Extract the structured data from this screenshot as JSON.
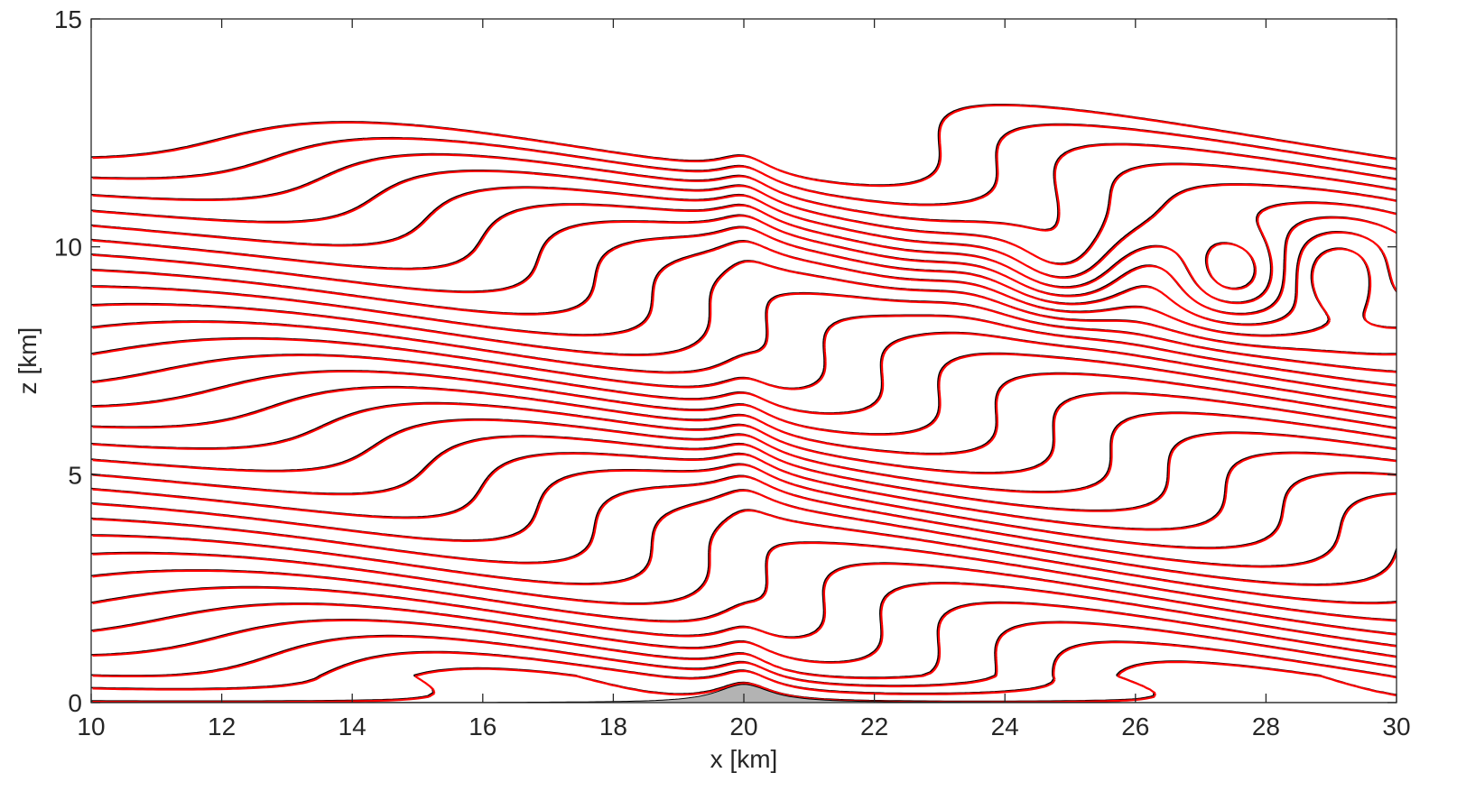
{
  "chart_data": {
    "type": "contour",
    "xlabel": "x [km]",
    "ylabel": "z [km]",
    "xlim": [
      10,
      30
    ],
    "ylim": [
      0,
      15
    ],
    "xticks": [
      "10",
      "12",
      "14",
      "16",
      "18",
      "20",
      "22",
      "24",
      "26",
      "28",
      "30"
    ],
    "yticks": [
      "0",
      "5",
      "10",
      "15"
    ],
    "grid": false,
    "legend": "none",
    "terrain": {
      "type": "witch-of-agnesi",
      "center_x": 20,
      "height_km": 0.4,
      "half_width_km": 0.5,
      "fill_color": "#b3b3b3"
    },
    "series": [
      {
        "values": [],
        "color": "#000000",
        "dash": "solid"
      },
      {
        "values": [],
        "color": "#ff0000",
        "dash": "dashed"
      }
    ],
    "contours": {
      "levels_count": 30,
      "wave_center_x": 20,
      "wave_tilt": 0.55,
      "critical_level_z": 9.4
    }
  }
}
